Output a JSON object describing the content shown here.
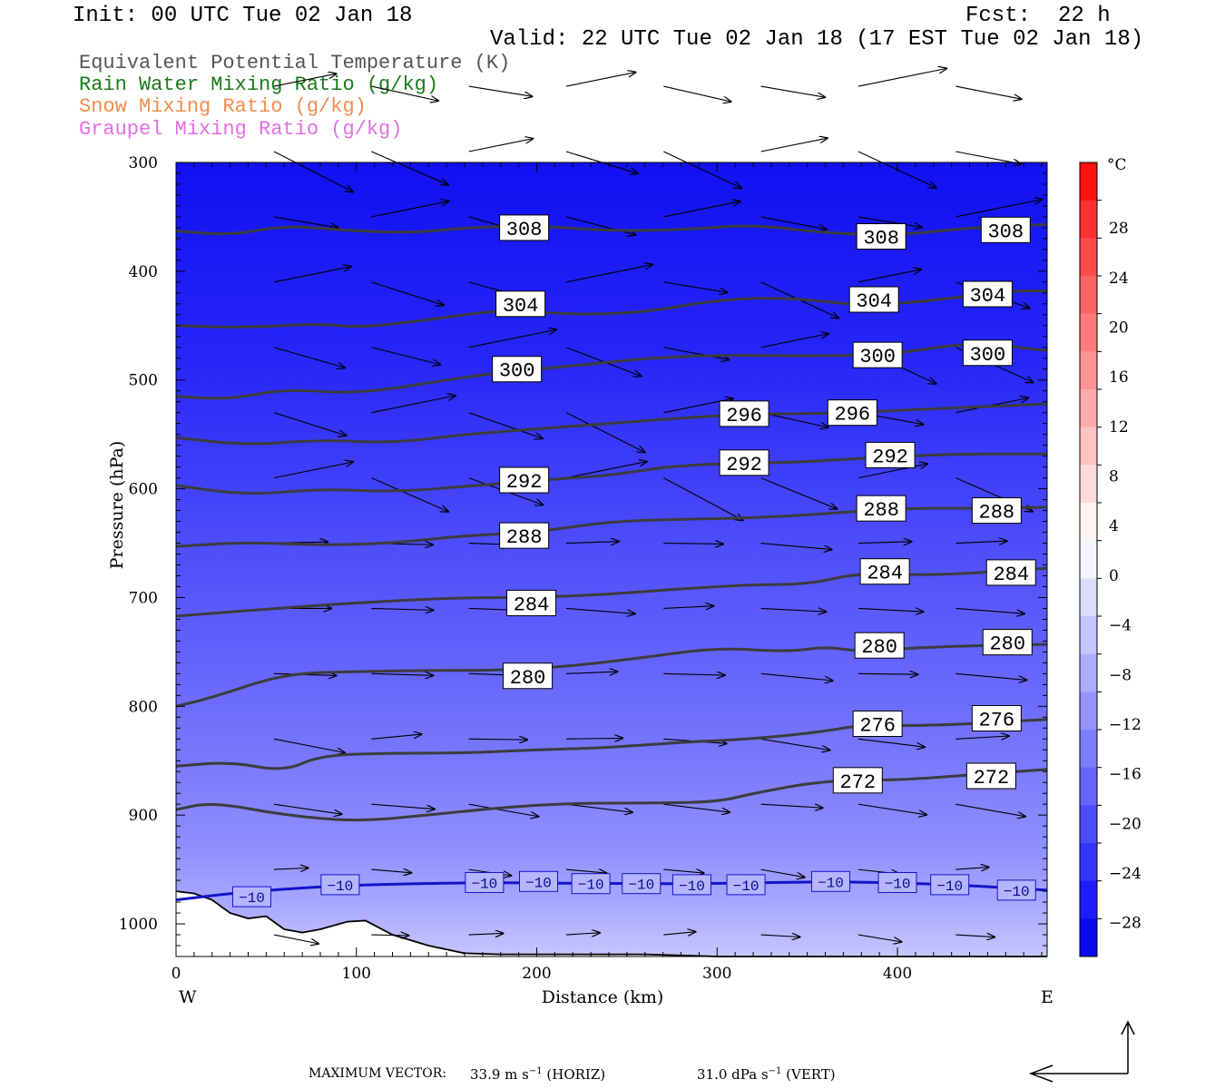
{
  "header": {
    "init": "Init: 00 UTC Tue 02 Jan 18",
    "fcst_label": "Fcst:",
    "fcst_value": "22 h",
    "valid": "Valid: 22 UTC Tue 02 Jan 18 (17 EST Tue 02 Jan 18)"
  },
  "legend": [
    {
      "text": "Equivalent Potential Temperature (K)",
      "color": "#555555"
    },
    {
      "text": "Rain Water Mixing Ratio (g/kg)",
      "color": "#1a7a1a"
    },
    {
      "text": "Snow Mixing Ratio (g/kg)",
      "color": "#f08c50"
    },
    {
      "text": "Graupel Mixing Ratio (g/kg)",
      "color": "#e070e0"
    }
  ],
  "chart_data": {
    "type": "cross-section",
    "xlabel": "Distance (km)",
    "ylabel": "Pressure (hPa)",
    "x_ticks": [
      0,
      100,
      200,
      300,
      400
    ],
    "y_ticks": [
      300,
      400,
      500,
      600,
      700,
      800,
      900,
      1000
    ],
    "xlim": [
      0,
      483
    ],
    "ylim": [
      300,
      1030
    ],
    "y_inverted": true,
    "x_end_labels": {
      "left": "W",
      "right": "E"
    },
    "theta_e_contours": [
      {
        "value": 308,
        "labels": [
          [
            193,
            360
          ],
          [
            391,
            368
          ],
          [
            460,
            362
          ]
        ],
        "line": [
          [
            0,
            363
          ],
          [
            30,
            367
          ],
          [
            60,
            358
          ],
          [
            90,
            362
          ],
          [
            130,
            365
          ],
          [
            160,
            360
          ],
          [
            200,
            358
          ],
          [
            240,
            363
          ],
          [
            280,
            362
          ],
          [
            320,
            357
          ],
          [
            360,
            365
          ],
          [
            400,
            367
          ],
          [
            440,
            360
          ],
          [
            483,
            357
          ]
        ]
      },
      {
        "value": 304,
        "labels": [
          [
            191,
            430
          ],
          [
            387,
            426
          ],
          [
            450,
            421
          ]
        ],
        "line": [
          [
            0,
            450
          ],
          [
            40,
            452
          ],
          [
            80,
            448
          ],
          [
            100,
            452
          ],
          [
            140,
            445
          ],
          [
            180,
            435
          ],
          [
            220,
            440
          ],
          [
            260,
            438
          ],
          [
            300,
            426
          ],
          [
            340,
            424
          ],
          [
            380,
            432
          ],
          [
            420,
            427
          ],
          [
            460,
            418
          ],
          [
            483,
            418
          ]
        ]
      },
      {
        "value": 300,
        "labels": [
          [
            189,
            490
          ],
          [
            389,
            477
          ],
          [
            450,
            475
          ]
        ],
        "line": [
          [
            0,
            515
          ],
          [
            30,
            518
          ],
          [
            60,
            508
          ],
          [
            100,
            513
          ],
          [
            150,
            500
          ],
          [
            180,
            493
          ],
          [
            220,
            487
          ],
          [
            260,
            480
          ],
          [
            300,
            477
          ],
          [
            360,
            478
          ],
          [
            400,
            476
          ],
          [
            440,
            465
          ],
          [
            483,
            473
          ]
        ]
      },
      {
        "value": 296,
        "labels": [
          [
            315,
            531
          ],
          [
            375,
            530
          ]
        ],
        "line": [
          [
            0,
            553
          ],
          [
            40,
            560
          ],
          [
            80,
            555
          ],
          [
            120,
            558
          ],
          [
            160,
            550
          ],
          [
            200,
            545
          ],
          [
            240,
            540
          ],
          [
            280,
            535
          ],
          [
            320,
            531
          ],
          [
            360,
            531
          ],
          [
            400,
            528
          ],
          [
            440,
            525
          ],
          [
            483,
            522
          ]
        ]
      },
      {
        "value": 292,
        "labels": [
          [
            193,
            592
          ],
          [
            315,
            576
          ],
          [
            396,
            569
          ]
        ],
        "line": [
          [
            0,
            597
          ],
          [
            40,
            606
          ],
          [
            80,
            600
          ],
          [
            120,
            603
          ],
          [
            160,
            598
          ],
          [
            200,
            592
          ],
          [
            240,
            588
          ],
          [
            270,
            580
          ],
          [
            300,
            577
          ],
          [
            340,
            576
          ],
          [
            380,
            572
          ],
          [
            430,
            568
          ],
          [
            483,
            568
          ]
        ]
      },
      {
        "value": 288,
        "labels": [
          [
            193,
            643
          ],
          [
            391,
            618
          ],
          [
            455,
            620
          ]
        ],
        "line": [
          [
            0,
            653
          ],
          [
            40,
            649
          ],
          [
            80,
            652
          ],
          [
            120,
            650
          ],
          [
            160,
            643
          ],
          [
            200,
            640
          ],
          [
            240,
            630
          ],
          [
            280,
            628
          ],
          [
            320,
            627
          ],
          [
            360,
            623
          ],
          [
            400,
            618
          ],
          [
            440,
            618
          ],
          [
            483,
            617
          ]
        ]
      },
      {
        "value": 284,
        "labels": [
          [
            197,
            705
          ],
          [
            393,
            676
          ],
          [
            463,
            677
          ]
        ],
        "line": [
          [
            0,
            717
          ],
          [
            40,
            712
          ],
          [
            80,
            707
          ],
          [
            120,
            703
          ],
          [
            160,
            700
          ],
          [
            200,
            700
          ],
          [
            240,
            697
          ],
          [
            280,
            692
          ],
          [
            320,
            688
          ],
          [
            350,
            688
          ],
          [
            380,
            677
          ],
          [
            420,
            680
          ],
          [
            483,
            673
          ]
        ]
      },
      {
        "value": 280,
        "labels": [
          [
            195,
            772
          ],
          [
            390,
            744
          ],
          [
            461,
            741
          ]
        ],
        "line": [
          [
            0,
            800
          ],
          [
            20,
            792
          ],
          [
            60,
            770
          ],
          [
            100,
            768
          ],
          [
            140,
            767
          ],
          [
            180,
            767
          ],
          [
            220,
            763
          ],
          [
            260,
            755
          ],
          [
            300,
            746
          ],
          [
            340,
            750
          ],
          [
            360,
            745
          ],
          [
            380,
            750
          ],
          [
            420,
            745
          ],
          [
            483,
            743
          ]
        ]
      },
      {
        "value": 276,
        "labels": [
          [
            389,
            816
          ],
          [
            455,
            811
          ]
        ],
        "line": [
          [
            0,
            855
          ],
          [
            30,
            851
          ],
          [
            60,
            860
          ],
          [
            80,
            845
          ],
          [
            120,
            843
          ],
          [
            160,
            843
          ],
          [
            200,
            840
          ],
          [
            240,
            838
          ],
          [
            280,
            833
          ],
          [
            320,
            830
          ],
          [
            360,
            823
          ],
          [
            380,
            817
          ],
          [
            420,
            818
          ],
          [
            483,
            812
          ]
        ]
      },
      {
        "value": 272,
        "labels": [
          [
            378,
            868
          ],
          [
            452,
            864
          ]
        ],
        "line": [
          [
            0,
            895
          ],
          [
            20,
            888
          ],
          [
            60,
            900
          ],
          [
            100,
            906
          ],
          [
            140,
            900
          ],
          [
            180,
            893
          ],
          [
            220,
            889
          ],
          [
            260,
            889
          ],
          [
            300,
            888
          ],
          [
            320,
            880
          ],
          [
            360,
            868
          ],
          [
            400,
            868
          ],
          [
            440,
            863
          ],
          [
            483,
            858
          ]
        ]
      }
    ],
    "temperature_contours": [
      {
        "value": -10,
        "labels": [
          [
            42,
            975
          ],
          [
            91,
            964
          ],
          [
            171,
            962
          ],
          [
            201,
            961
          ],
          [
            230,
            963
          ],
          [
            258,
            963
          ],
          [
            286,
            964
          ],
          [
            316,
            964
          ],
          [
            363,
            961
          ],
          [
            400,
            962
          ],
          [
            429,
            964
          ],
          [
            466,
            969
          ]
        ],
        "color": "#1414c8",
        "line": [
          [
            0,
            978
          ],
          [
            30,
            972
          ],
          [
            60,
            968
          ],
          [
            90,
            965
          ],
          [
            130,
            963
          ],
          [
            180,
            962
          ],
          [
            240,
            963
          ],
          [
            300,
            963
          ],
          [
            360,
            961
          ],
          [
            420,
            963
          ],
          [
            483,
            969
          ]
        ]
      }
    ],
    "shading_scale": {
      "title": "°C",
      "tick_labels": [
        "28",
        "24",
        "20",
        "16",
        "12",
        "8",
        "4",
        "0",
        "−4",
        "−8",
        "−12",
        "−16",
        "−20",
        "−24",
        "−28"
      ],
      "colors_top_to_bottom": [
        "#ff1010",
        "#ff3030",
        "#ff4a4a",
        "#ff6262",
        "#ff7a7a",
        "#ff9292",
        "#ffaaaa",
        "#ffc2c2",
        "#ffdada",
        "#fff2f2",
        "#f4f4ff",
        "#dcdcff",
        "#c4c4ff",
        "#acacff",
        "#9494ff",
        "#7c7cff",
        "#6464ff",
        "#4c4cff",
        "#3434ff",
        "#1c1cff",
        "#0a0af0"
      ]
    },
    "terrain_pressure_hPa": [
      [
        0,
        970
      ],
      [
        10,
        972
      ],
      [
        20,
        978
      ],
      [
        30,
        990
      ],
      [
        40,
        995
      ],
      [
        50,
        993
      ],
      [
        60,
        1005
      ],
      [
        70,
        1008
      ],
      [
        80,
        1005
      ],
      [
        95,
        998
      ],
      [
        105,
        997
      ],
      [
        120,
        1010
      ],
      [
        140,
        1020
      ],
      [
        160,
        1027
      ],
      [
        180,
        1028
      ],
      [
        200,
        1028
      ],
      [
        260,
        1028
      ],
      [
        300,
        1030
      ],
      [
        483,
        1030
      ]
    ],
    "max_vector": {
      "label": "MAXIMUM VECTOR:",
      "horiz_value": "33.9 m s",
      "horiz_sup": "−1",
      "horiz_tag": "(HORIZ)",
      "vert_value": "31.0 dPa s",
      "vert_sup": "−1",
      "vert_tag": "(VERT)"
    }
  }
}
